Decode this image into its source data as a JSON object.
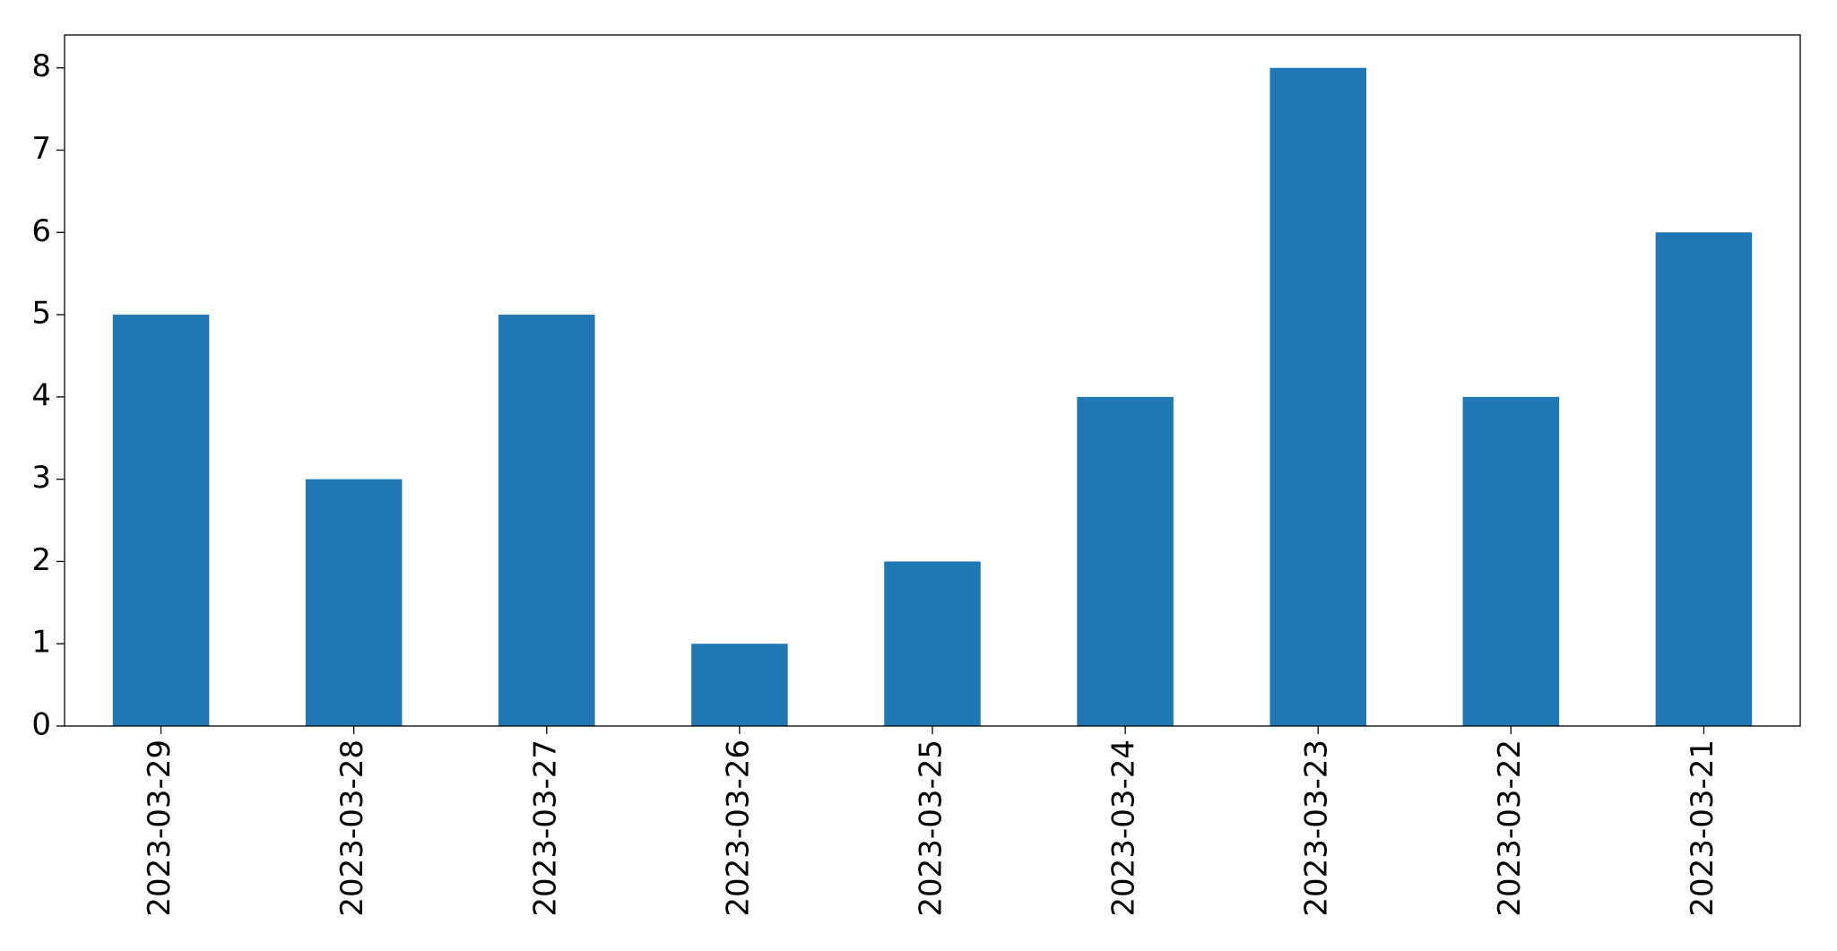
{
  "chart_data": {
    "type": "bar",
    "categories": [
      "2023-03-29",
      "2023-03-28",
      "2023-03-27",
      "2023-03-26",
      "2023-03-25",
      "2023-03-24",
      "2023-03-23",
      "2023-03-22",
      "2023-03-21"
    ],
    "values": [
      5,
      3,
      5,
      1,
      2,
      4,
      8,
      4,
      6
    ],
    "color": "#1f77b4",
    "ylim": [
      0,
      8.4
    ],
    "yticks": [
      0,
      1,
      2,
      3,
      4,
      5,
      6,
      7,
      8
    ],
    "grid": false
  }
}
